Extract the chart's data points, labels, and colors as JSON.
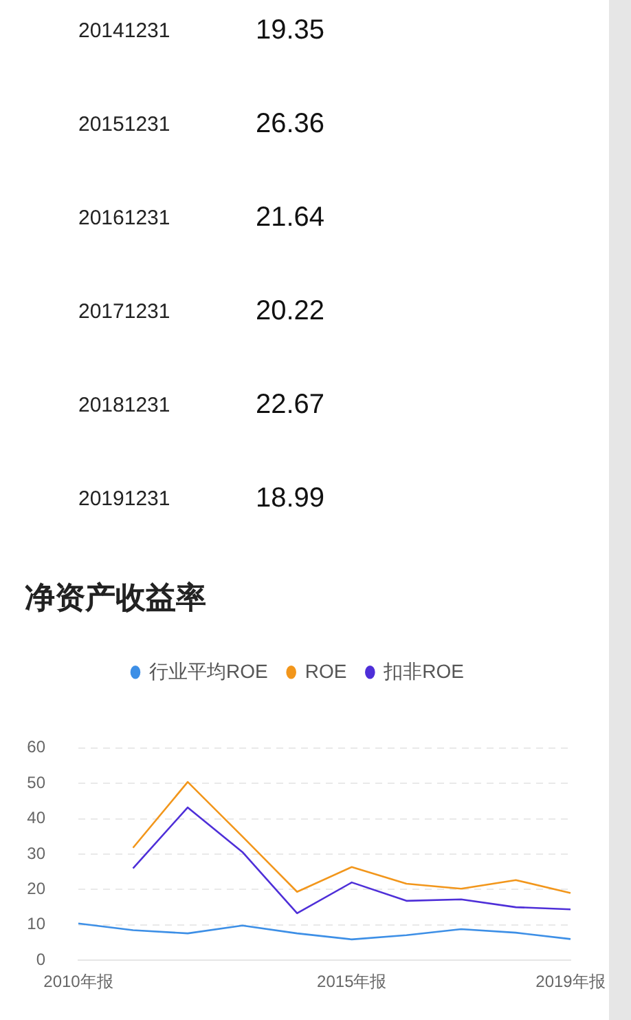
{
  "chart_data": {
    "type": "line",
    "title": "净资产收益率",
    "annotations": [
      "20141231",
      "19.35",
      "20151231",
      "26.36",
      "20161231",
      "21.64",
      "20171231",
      "20.22",
      "20181231",
      "22.67",
      "20191231",
      "18.99"
    ],
    "categories": [
      "2010年报",
      null,
      null,
      null,
      null,
      "2015年报",
      null,
      null,
      null,
      "2019年报"
    ],
    "series": [
      {
        "name": "行业平均ROE",
        "color": "#3d8fe6",
        "values": [
          10.4,
          8.5,
          7.6,
          9.8,
          7.6,
          5.9,
          7.1,
          8.8,
          7.8,
          6.0
        ]
      },
      {
        "name": "ROE",
        "color": "#f2961b",
        "values": [
          null,
          31.8,
          50.4,
          35.0,
          19.35,
          26.36,
          21.64,
          20.22,
          22.67,
          18.99
        ]
      },
      {
        "name": "扣非ROE",
        "color": "#4e2fd8",
        "values": [
          null,
          26.0,
          43.2,
          30.6,
          13.3,
          22.0,
          16.8,
          17.2,
          15.0,
          14.4
        ]
      }
    ],
    "ylim": [
      0,
      60
    ],
    "yticks": [
      0,
      10,
      20,
      30,
      40,
      50,
      60
    ],
    "grid": "y",
    "legend": "top",
    "marker": "none",
    "line_style": "solid"
  }
}
